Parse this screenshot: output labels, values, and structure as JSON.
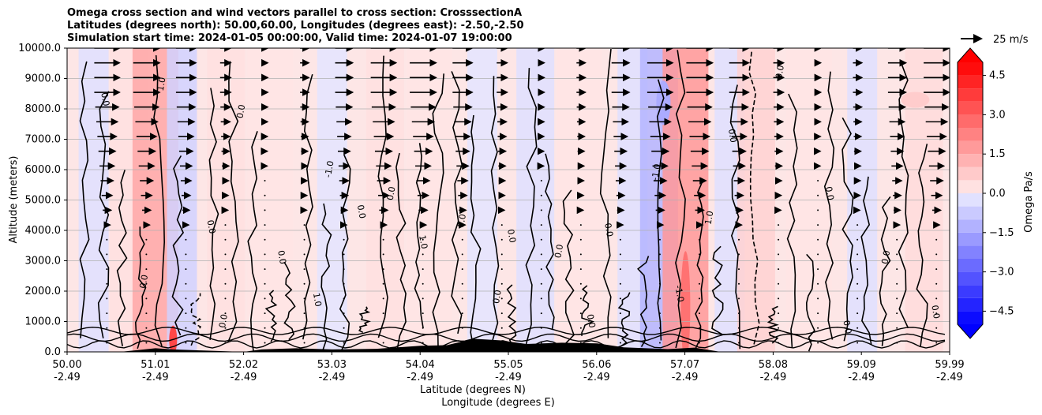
{
  "title": {
    "line1": "Omega cross section and wind vectors parallel to cross section: CrosssectionA",
    "line2": "Latitudes (degrees north): 50.00,60.00, Longitudes (degrees east): -2.50,-2.50",
    "line3": "Simulation start time: 2024-01-05 00:00:00, Valid time: 2024-01-07 19:00:00"
  },
  "colors": {
    "positive": "#ff0000",
    "negative": "#0000ff",
    "light_pos": "#fde6e6",
    "light_neg": "#e8e8fb",
    "terrain": "#000000",
    "grid": "#b0b0b0"
  },
  "chart_data": {
    "type": "contourf",
    "title": "Omega cross section and wind vectors parallel to cross section: CrosssectionA",
    "ylabel": "Altitude (meters)",
    "xlabel_lat": "Latitude (degrees N)",
    "xlabel_lon": "Longitude (degrees E)",
    "ylim": [
      0,
      10000
    ],
    "xlim": [
      50.0,
      59.99
    ],
    "yticks": [
      0,
      1000,
      2000,
      3000,
      4000,
      5000,
      6000,
      7000,
      8000,
      9000,
      10000
    ],
    "ytick_labels": [
      "0.0",
      "1000.0",
      "2000.0",
      "3000.0",
      "4000.0",
      "5000.0",
      "6000.0",
      "7000.0",
      "8000.0",
      "9000.0",
      "10000.0"
    ],
    "xticks": [
      {
        "lat": "50.00",
        "lon": "-2.49"
      },
      {
        "lat": "51.01",
        "lon": "-2.49"
      },
      {
        "lat": "52.02",
        "lon": "-2.49"
      },
      {
        "lat": "53.03",
        "lon": "-2.49"
      },
      {
        "lat": "54.04",
        "lon": "-2.49"
      },
      {
        "lat": "55.05",
        "lon": "-2.49"
      },
      {
        "lat": "56.06",
        "lon": "-2.49"
      },
      {
        "lat": "57.07",
        "lon": "-2.49"
      },
      {
        "lat": "58.08",
        "lon": "-2.49"
      },
      {
        "lat": "59.09",
        "lon": "-2.49"
      },
      {
        "lat": "59.99",
        "lon": "-2.49"
      }
    ],
    "grid": true,
    "colorbar": {
      "label": "Omega Pa/s",
      "range": [
        -5.0,
        5.0
      ],
      "ticks": [
        4.5,
        3.0,
        1.5,
        0.0,
        -1.5,
        -3.0,
        -4.5
      ],
      "tick_labels": [
        "4.5",
        "3.0",
        "1.5",
        "0.0",
        "−1.5",
        "−3.0",
        "−4.5"
      ],
      "levels": 20,
      "extend": "both"
    },
    "quiver_key": {
      "label": "25 m/s",
      "speed": 25
    },
    "contour_line_label_values": [
      "0.0",
      "1.0",
      "-1.0"
    ],
    "omega_columns": [
      {
        "lat": 50.3,
        "value": -0.3
      },
      {
        "lat": 50.7,
        "value": 0.3
      },
      {
        "lat": 51.0,
        "value": 1.5
      },
      {
        "lat": 51.3,
        "value": -0.6
      },
      {
        "lat": 51.8,
        "value": 0.3
      },
      {
        "lat": 52.3,
        "value": 0.2
      },
      {
        "lat": 53.0,
        "value": -0.2
      },
      {
        "lat": 53.6,
        "value": 0.3
      },
      {
        "lat": 54.1,
        "value": 0.2
      },
      {
        "lat": 54.7,
        "value": -0.2
      },
      {
        "lat": 55.3,
        "value": -0.3
      },
      {
        "lat": 55.8,
        "value": 0.2
      },
      {
        "lat": 56.4,
        "value": -0.3
      },
      {
        "lat": 56.7,
        "value": -1.2
      },
      {
        "lat": 57.0,
        "value": 1.8
      },
      {
        "lat": 57.5,
        "value": -0.3
      },
      {
        "lat": 57.8,
        "value": 0.6
      },
      {
        "lat": 58.4,
        "value": 0.2
      },
      {
        "lat": 59.0,
        "value": -0.3
      },
      {
        "lat": 59.7,
        "value": 0.4
      }
    ],
    "terrain_profile": [
      {
        "lat": 50.0,
        "alt": 0
      },
      {
        "lat": 50.6,
        "alt": 0
      },
      {
        "lat": 50.8,
        "alt": 60
      },
      {
        "lat": 51.0,
        "alt": 120
      },
      {
        "lat": 51.2,
        "alt": 80
      },
      {
        "lat": 51.5,
        "alt": 50
      },
      {
        "lat": 52.0,
        "alt": 0
      },
      {
        "lat": 52.2,
        "alt": 80
      },
      {
        "lat": 52.6,
        "alt": 120
      },
      {
        "lat": 53.0,
        "alt": 80
      },
      {
        "lat": 53.5,
        "alt": 100
      },
      {
        "lat": 54.0,
        "alt": 200
      },
      {
        "lat": 54.3,
        "alt": 220
      },
      {
        "lat": 54.6,
        "alt": 430
      },
      {
        "lat": 54.9,
        "alt": 380
      },
      {
        "lat": 55.2,
        "alt": 260
      },
      {
        "lat": 55.6,
        "alt": 300
      },
      {
        "lat": 56.0,
        "alt": 280
      },
      {
        "lat": 56.3,
        "alt": 150
      },
      {
        "lat": 56.8,
        "alt": 90
      },
      {
        "lat": 57.1,
        "alt": 140
      },
      {
        "lat": 57.4,
        "alt": 0
      },
      {
        "lat": 59.99,
        "alt": 0
      }
    ]
  }
}
